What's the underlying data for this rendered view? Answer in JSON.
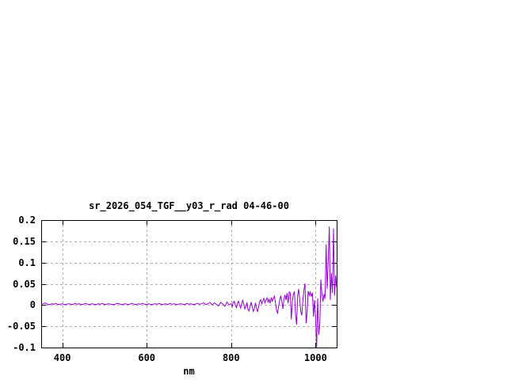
{
  "page": {
    "background": "#ffffff"
  },
  "chart": {
    "title": "sr_2026_054_TGF__y03_r_rad 04-46-00",
    "xlabel": "nm",
    "grid_color": "#b0b0b0",
    "border_color": "#000000",
    "text_color": "#000000"
  },
  "chart_data": {
    "type": "line",
    "title": "sr_2026_054_TGF__y03_r_rad 04-46-00",
    "xlabel": "nm",
    "ylabel": "",
    "xlim": [
      350,
      1050
    ],
    "ylim": [
      -0.1,
      0.2
    ],
    "grid": true,
    "legend": "none",
    "xticks": [
      400,
      600,
      800,
      1000
    ],
    "xtick_labels": [
      "400",
      "600",
      "800",
      "1000"
    ],
    "yticks": [
      0.2,
      0.15,
      0.1,
      0.05,
      0,
      -0.05,
      -0.1
    ],
    "ytick_labels": [
      "0.2",
      "0.15",
      "0.1",
      "0.05",
      "0",
      "-0.05",
      "-0.1"
    ],
    "series": [
      {
        "name": "sr_2026_054_TGF__y03_r_rad",
        "color": "#9400d3",
        "x": [
          350,
          355,
          360,
          365,
          370,
          375,
          380,
          385,
          390,
          395,
          400,
          405,
          410,
          415,
          420,
          425,
          430,
          435,
          440,
          445,
          450,
          455,
          460,
          465,
          470,
          475,
          480,
          485,
          490,
          495,
          500,
          505,
          510,
          515,
          520,
          525,
          530,
          535,
          540,
          545,
          550,
          555,
          560,
          565,
          570,
          575,
          580,
          585,
          590,
          595,
          600,
          605,
          610,
          615,
          620,
          625,
          630,
          635,
          640,
          645,
          650,
          655,
          660,
          665,
          670,
          675,
          680,
          685,
          690,
          695,
          700,
          705,
          710,
          715,
          720,
          725,
          730,
          735,
          740,
          745,
          750,
          755,
          760,
          765,
          770,
          775,
          780,
          785,
          790,
          795,
          800,
          802.5,
          805,
          807.5,
          810,
          812.5,
          815,
          817.5,
          820,
          822.5,
          825,
          827.5,
          830,
          832.5,
          835,
          837.5,
          840,
          842.5,
          845,
          847.5,
          850,
          852.5,
          855,
          857.5,
          860,
          862.5,
          865,
          867.5,
          870,
          872.5,
          875,
          877.5,
          880,
          882.5,
          885,
          887.5,
          890,
          892.5,
          895,
          897.5,
          900,
          902.5,
          905,
          907.5,
          910,
          912.5,
          915,
          917.5,
          920,
          922.5,
          925,
          927.5,
          930,
          932.5,
          935,
          937.5,
          940,
          942.5,
          945,
          947.5,
          950,
          952.5,
          955,
          957.5,
          960,
          962.5,
          965,
          967.5,
          970,
          972.5,
          975,
          977.5,
          980,
          982.5,
          985,
          987.5,
          990,
          992.5,
          995,
          997.5,
          1000,
          1002.5,
          1005,
          1007.5,
          1010,
          1012.5,
          1015,
          1017.5,
          1020,
          1022.5,
          1025,
          1027.5,
          1030,
          1032.5,
          1035,
          1037.5,
          1040,
          1042.5,
          1045,
          1047.5,
          1050
        ],
        "y": [
          0.002,
          0.003,
          0.005,
          0.002,
          0.001,
          0.003,
          0.002,
          0.004,
          0.001,
          0.002,
          0.003,
          0.001,
          0.002,
          0.003,
          0.002,
          0.001,
          0.004,
          0.002,
          0.003,
          0.001,
          0.002,
          0.004,
          0.002,
          0.001,
          0.003,
          0.002,
          0.001,
          0.003,
          0.002,
          0.004,
          0.001,
          0.002,
          0.003,
          0.002,
          0.001,
          0.002,
          0.004,
          0.003,
          0.001,
          0.002,
          0.003,
          0.001,
          0.002,
          0.004,
          0.002,
          0.001,
          0.003,
          0.002,
          0.004,
          0.002,
          0.001,
          0.003,
          0.001,
          0.002,
          0.003,
          0.002,
          0.004,
          0.001,
          0.002,
          0.003,
          0.001,
          0.004,
          0.002,
          0.003,
          0.001,
          0.002,
          0.003,
          0.002,
          0.001,
          0.004,
          0.002,
          0.003,
          0.001,
          0.002,
          0.004,
          0.002,
          0.003,
          0.005,
          0.001,
          0.003,
          0.006,
          0.0,
          0.005,
          0.002,
          -0.002,
          0.006,
          0.003,
          -0.003,
          0.007,
          0.001,
          0.003,
          -0.004,
          0.007,
          0.009,
          -0.001,
          -0.006,
          0.004,
          0.009,
          0.0,
          -0.007,
          0.003,
          0.011,
          0.002,
          -0.009,
          -0.003,
          0.006,
          -0.011,
          -0.014,
          -0.002,
          0.007,
          -0.005,
          -0.015,
          -0.008,
          0.005,
          -0.007,
          -0.016,
          -0.004,
          0.009,
          0.013,
          0.003,
          0.01,
          0.016,
          0.005,
          0.012,
          0.017,
          0.007,
          0.014,
          0.004,
          0.018,
          0.009,
          0.016,
          0.021,
          0.006,
          -0.013,
          -0.019,
          -0.003,
          0.011,
          0.022,
          0.01,
          -0.009,
          0.014,
          0.024,
          0.012,
          0.028,
          0.004,
          0.031,
          0.029,
          -0.034,
          0.009,
          0.026,
          0.032,
          -0.021,
          -0.046,
          0.021,
          0.038,
          0.011,
          -0.016,
          -0.024,
          0.012,
          0.036,
          0.051,
          -0.043,
          -0.018,
          0.033,
          0.023,
          0.031,
          0.02,
          0.029,
          -0.027,
          0.012,
          -0.032,
          -0.102,
          0.016,
          -0.07,
          -0.045,
          0.06,
          0.028,
          0.008,
          0.026,
          0.015,
          0.143,
          0.038,
          0.1,
          0.185,
          0.012,
          0.075,
          0.028,
          0.18,
          0.022,
          0.07,
          0.042
        ]
      }
    ]
  }
}
